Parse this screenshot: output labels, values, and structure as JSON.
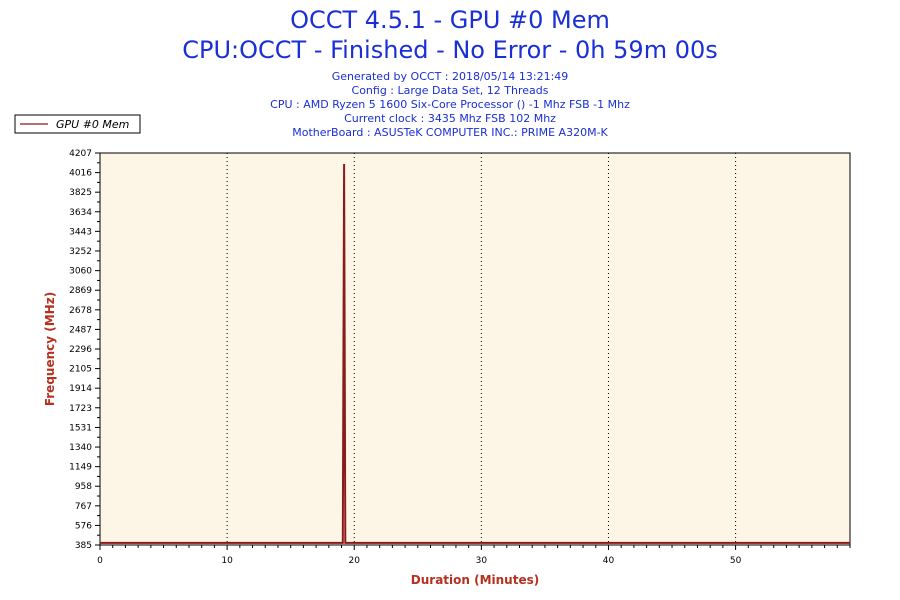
{
  "chart_data": {
    "type": "line",
    "title": "OCCT 4.5.1 - GPU #0 Mem",
    "subtitle": "CPU:OCCT - Finished - No Error - 0h 59m 00s",
    "info_lines": [
      "Generated by OCCT : 2018/05/14 13:21:49",
      "Config : Large Data Set, 12 Threads",
      "CPU : AMD Ryzen 5 1600 Six-Core Processor () -1 Mhz FSB -1 Mhz",
      "Current clock : 3435 Mhz FSB 102 Mhz",
      "MotherBoard : ASUSTeK COMPUTER INC.: PRIME A320M-K"
    ],
    "xlabel": "Duration (Minutes)",
    "ylabel": "Frequency (MHz)",
    "xlim": [
      0,
      59
    ],
    "ylim": [
      385,
      4207
    ],
    "x_ticks": [
      0,
      10,
      20,
      30,
      40,
      50
    ],
    "y_ticks": [
      385,
      576,
      767,
      958,
      1149,
      1340,
      1531,
      1723,
      1914,
      2105,
      2296,
      2487,
      2678,
      2869,
      3060,
      3252,
      3443,
      3634,
      3825,
      4016,
      4207
    ],
    "grid": "vertical dotted",
    "legend_position": "top-left",
    "series": [
      {
        "name": "GPU #0 Mem",
        "color": "#8b1a1a",
        "points": [
          [
            0,
            405
          ],
          [
            19.1,
            405
          ],
          [
            19.2,
            4100
          ],
          [
            19.3,
            405
          ],
          [
            59,
            405
          ]
        ]
      }
    ],
    "colors": {
      "title": "#1a2fd6",
      "axis_label": "#b5301e",
      "plot_background": "#fdf5e6",
      "series": "#8b1a1a"
    }
  }
}
